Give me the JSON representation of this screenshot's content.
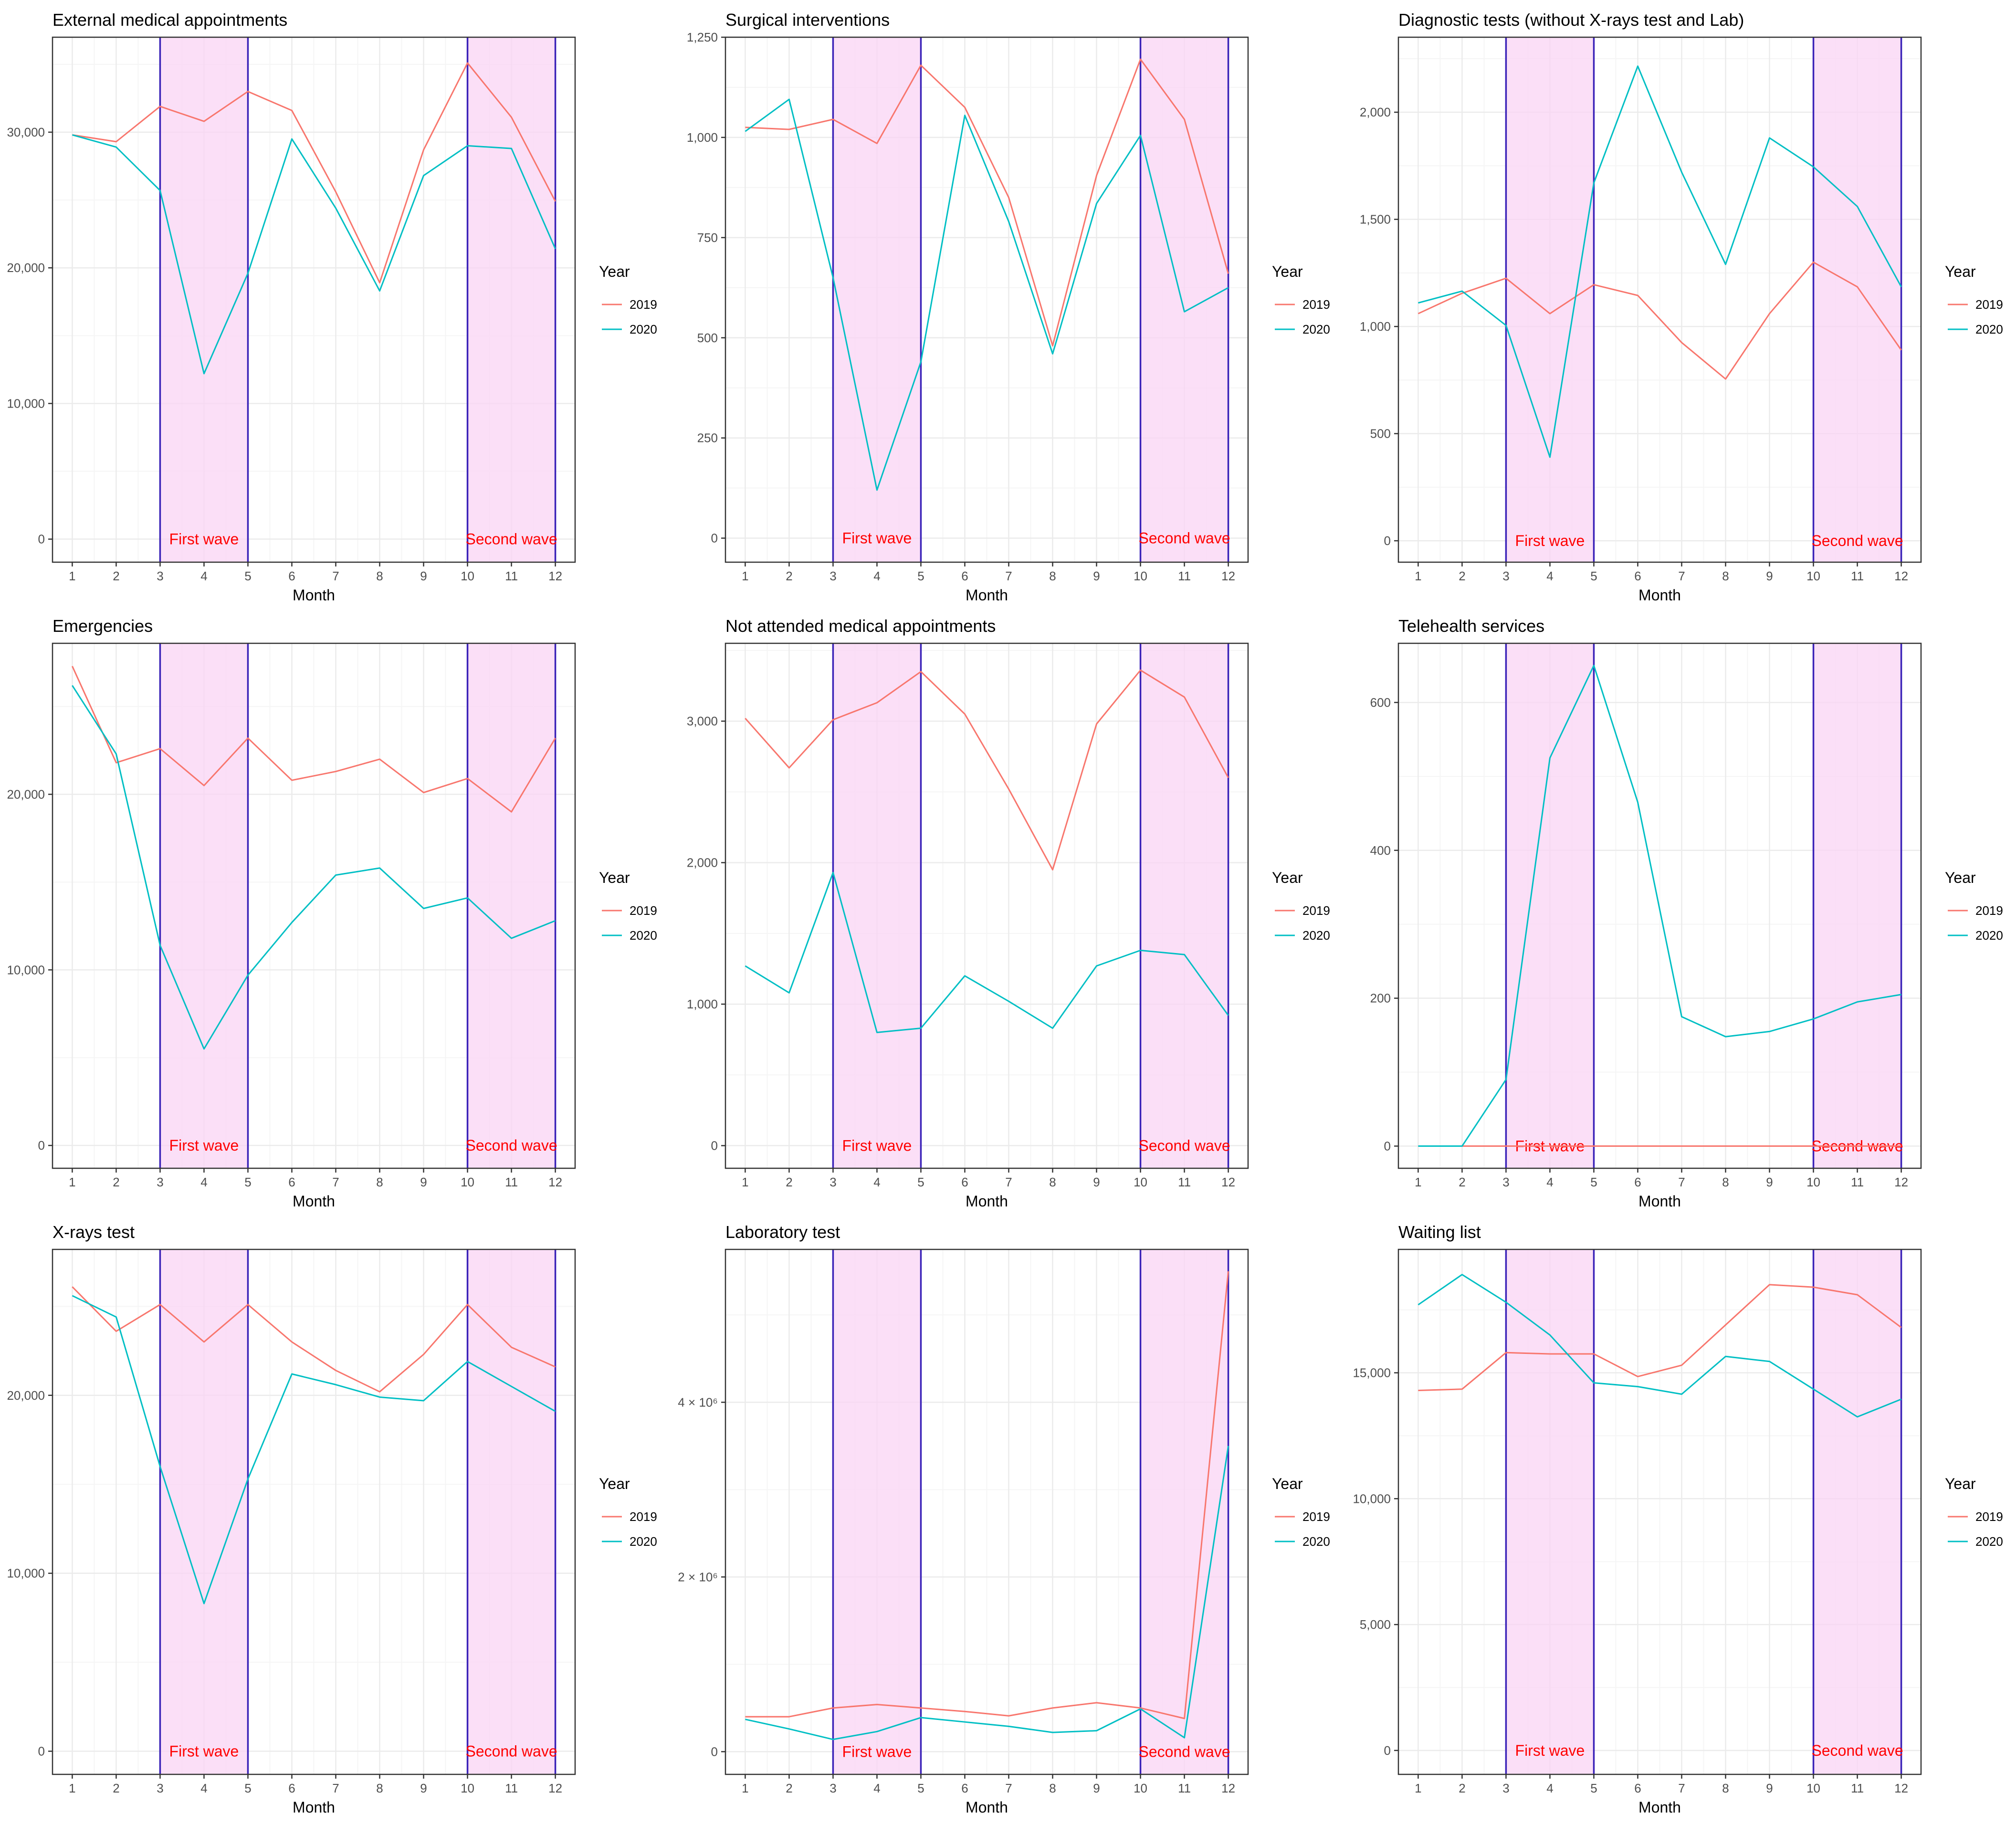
{
  "colors": {
    "series_2019": "#F8766D",
    "series_2020": "#00BFC4",
    "wave_fill": "#FAD4F4",
    "wave_line": "#3A22B8",
    "wave_label": "#FF0000",
    "grid_major": "#EBEBEB",
    "grid_minor": "#F5F5F5",
    "panel_border": "#333333"
  },
  "chart_data": [
    {
      "type": "line",
      "title": "External medical appointments",
      "xlabel": "Month",
      "x": [
        1,
        2,
        3,
        4,
        5,
        6,
        7,
        8,
        9,
        10,
        11,
        12
      ],
      "ylim": [
        -1700,
        37000
      ],
      "yticks": [
        0,
        10000,
        20000,
        30000
      ],
      "ytick_labels": [
        "0",
        "10,000",
        "20,000",
        "30,000"
      ],
      "series": [
        {
          "name": "2019",
          "values": [
            29800,
            29300,
            31900,
            30800,
            33000,
            31600,
            25600,
            18900,
            28700,
            35100,
            31100,
            24900
          ]
        },
        {
          "name": "2020",
          "values": [
            29800,
            28900,
            25700,
            12200,
            19600,
            29500,
            24400,
            18300,
            26800,
            29000,
            28800,
            21400
          ]
        }
      ],
      "waves": [
        {
          "from": 3,
          "to": 5,
          "label": "First wave"
        },
        {
          "from": 10,
          "to": 12,
          "label": "Second wave"
        }
      ],
      "legend": {
        "title": "Year",
        "position": "right"
      }
    },
    {
      "type": "line",
      "title": "Surgical interventions",
      "xlabel": "Month",
      "x": [
        1,
        2,
        3,
        4,
        5,
        6,
        7,
        8,
        9,
        10,
        11,
        12
      ],
      "ylim": [
        -60,
        1250
      ],
      "yticks": [
        0,
        250,
        500,
        750,
        1000,
        1250
      ],
      "ytick_labels": [
        "0",
        "250",
        "500",
        "750",
        "1,000",
        "1,250"
      ],
      "series": [
        {
          "name": "2019",
          "values": [
            1025,
            1020,
            1045,
            985,
            1180,
            1075,
            850,
            480,
            905,
            1195,
            1045,
            660
          ]
        },
        {
          "name": "2020",
          "values": [
            1015,
            1095,
            650,
            120,
            440,
            1055,
            790,
            460,
            835,
            1005,
            565,
            625
          ]
        }
      ],
      "waves": [
        {
          "from": 3,
          "to": 5,
          "label": "First wave"
        },
        {
          "from": 10,
          "to": 12,
          "label": "Second wave"
        }
      ],
      "legend": {
        "title": "Year",
        "position": "right"
      }
    },
    {
      "type": "line",
      "title": "Diagnostic tests (without X-rays test and Lab)",
      "xlabel": "Month",
      "x": [
        1,
        2,
        3,
        4,
        5,
        6,
        7,
        8,
        9,
        10,
        11,
        12
      ],
      "ylim": [
        -100,
        2350
      ],
      "yticks": [
        0,
        500,
        1000,
        1500,
        2000
      ],
      "ytick_labels": [
        "0",
        "500",
        "1,000",
        "1,500",
        "2,000"
      ],
      "series": [
        {
          "name": "2019",
          "values": [
            1060,
            1155,
            1225,
            1060,
            1195,
            1145,
            925,
            755,
            1060,
            1300,
            1185,
            890
          ]
        },
        {
          "name": "2020",
          "values": [
            1110,
            1165,
            1005,
            390,
            1670,
            2215,
            1720,
            1290,
            1880,
            1745,
            1560,
            1185
          ]
        }
      ],
      "waves": [
        {
          "from": 3,
          "to": 5,
          "label": "First wave"
        },
        {
          "from": 10,
          "to": 12,
          "label": "Second wave"
        }
      ],
      "legend": {
        "title": "Year",
        "position": "right"
      }
    },
    {
      "type": "line",
      "title": "Emergencies",
      "xlabel": "Month",
      "x": [
        1,
        2,
        3,
        4,
        5,
        6,
        7,
        8,
        9,
        10,
        11,
        12
      ],
      "ylim": [
        -1300,
        28600
      ],
      "yticks": [
        0,
        10000,
        20000
      ],
      "ytick_labels": [
        "0",
        "10,000",
        "20,000"
      ],
      "series": [
        {
          "name": "2019",
          "values": [
            27300,
            21800,
            22600,
            20500,
            23200,
            20800,
            21300,
            22000,
            20100,
            20900,
            19000,
            23200
          ]
        },
        {
          "name": "2020",
          "values": [
            26200,
            22300,
            11400,
            5500,
            9700,
            12700,
            15400,
            15800,
            13500,
            14100,
            11800,
            12800
          ]
        }
      ],
      "waves": [
        {
          "from": 3,
          "to": 5,
          "label": "First wave"
        },
        {
          "from": 10,
          "to": 12,
          "label": "Second wave"
        }
      ],
      "legend": {
        "title": "Year",
        "position": "right"
      }
    },
    {
      "type": "line",
      "title": "Not attended medical appointments",
      "xlabel": "Month",
      "x": [
        1,
        2,
        3,
        4,
        5,
        6,
        7,
        8,
        9,
        10,
        11,
        12
      ],
      "ylim": [
        -160,
        3550
      ],
      "yticks": [
        0,
        1000,
        2000,
        3000
      ],
      "ytick_labels": [
        "0",
        "1,000",
        "2,000",
        "3,000"
      ],
      "series": [
        {
          "name": "2019",
          "values": [
            3020,
            2670,
            3010,
            3130,
            3350,
            3050,
            2520,
            1950,
            2980,
            3360,
            3170,
            2600
          ]
        },
        {
          "name": "2020",
          "values": [
            1270,
            1080,
            1930,
            800,
            830,
            1200,
            1020,
            830,
            1270,
            1380,
            1350,
            920
          ]
        }
      ],
      "waves": [
        {
          "from": 3,
          "to": 5,
          "label": "First wave"
        },
        {
          "from": 10,
          "to": 12,
          "label": "Second wave"
        }
      ],
      "legend": {
        "title": "Year",
        "position": "right"
      }
    },
    {
      "type": "line",
      "title": "Telehealth services",
      "xlabel": "Month",
      "x": [
        1,
        2,
        3,
        4,
        5,
        6,
        7,
        8,
        9,
        10,
        11,
        12
      ],
      "ylim": [
        -30,
        680
      ],
      "yticks": [
        0,
        200,
        400,
        600
      ],
      "ytick_labels": [
        "0",
        "200",
        "400",
        "600"
      ],
      "series": [
        {
          "name": "2019",
          "values": [
            0,
            0,
            0,
            0,
            0,
            0,
            0,
            0,
            0,
            0,
            0,
            0
          ]
        },
        {
          "name": "2020",
          "values": [
            0,
            0,
            90,
            525,
            650,
            465,
            175,
            148,
            155,
            172,
            195,
            205
          ]
        }
      ],
      "waves": [
        {
          "from": 3,
          "to": 5,
          "label": "First wave"
        },
        {
          "from": 10,
          "to": 12,
          "label": "Second wave"
        }
      ],
      "legend": {
        "title": "Year",
        "position": "right"
      }
    },
    {
      "type": "line",
      "title": "X-rays test",
      "xlabel": "Month",
      "x": [
        1,
        2,
        3,
        4,
        5,
        6,
        7,
        8,
        9,
        10,
        11,
        12
      ],
      "ylim": [
        -1300,
        28200
      ],
      "yticks": [
        0,
        10000,
        20000
      ],
      "ytick_labels": [
        "0",
        "10,000",
        "20,000"
      ],
      "series": [
        {
          "name": "2019",
          "values": [
            26100,
            23600,
            25100,
            23000,
            25100,
            23000,
            21400,
            20200,
            22300,
            25100,
            22700,
            21600
          ]
        },
        {
          "name": "2020",
          "values": [
            25600,
            24400,
            16000,
            8300,
            15300,
            21200,
            20600,
            19900,
            19700,
            21900,
            20500,
            19100
          ]
        }
      ],
      "waves": [
        {
          "from": 3,
          "to": 5,
          "label": "First wave"
        },
        {
          "from": 10,
          "to": 12,
          "label": "Second wave"
        }
      ],
      "legend": {
        "title": "Year",
        "position": "right"
      }
    },
    {
      "type": "line",
      "title": "Laboratory test",
      "xlabel": "Month",
      "x": [
        1,
        2,
        3,
        4,
        5,
        6,
        7,
        8,
        9,
        10,
        11,
        12
      ],
      "ylim": [
        -260000,
        5750000
      ],
      "yticks": [
        0,
        2000000,
        4000000
      ],
      "ytick_labels": [
        "0",
        "2 × 10⁶",
        "4 × 10⁶"
      ],
      "series": [
        {
          "name": "2019",
          "values": [
            400000,
            400000,
            500000,
            540000,
            500000,
            460000,
            410000,
            500000,
            560000,
            500000,
            380000,
            5500000
          ]
        },
        {
          "name": "2020",
          "values": [
            370000,
            260000,
            140000,
            230000,
            390000,
            340000,
            290000,
            220000,
            240000,
            490000,
            160000,
            3500000
          ]
        }
      ],
      "waves": [
        {
          "from": 3,
          "to": 5,
          "label": "First wave"
        },
        {
          "from": 10,
          "to": 12,
          "label": "Second wave"
        }
      ],
      "legend": {
        "title": "Year",
        "position": "right"
      }
    },
    {
      "type": "line",
      "title": "Waiting list",
      "xlabel": "Month",
      "x": [
        1,
        2,
        3,
        4,
        5,
        6,
        7,
        8,
        9,
        10,
        11,
        12
      ],
      "ylim": [
        -950,
        19900
      ],
      "yticks": [
        0,
        5000,
        10000,
        15000
      ],
      "ytick_labels": [
        "0",
        "5,000",
        "10,000",
        "15,000"
      ],
      "series": [
        {
          "name": "2019",
          "values": [
            14300,
            14350,
            15800,
            15750,
            15750,
            14850,
            15300,
            16900,
            18500,
            18400,
            18100,
            16800
          ]
        },
        {
          "name": "2020",
          "values": [
            17700,
            18900,
            17800,
            16500,
            14600,
            14450,
            14150,
            15650,
            15450,
            14350,
            13250,
            13950
          ]
        }
      ],
      "waves": [
        {
          "from": 3,
          "to": 5,
          "label": "First wave"
        },
        {
          "from": 10,
          "to": 12,
          "label": "Second wave"
        }
      ],
      "legend": {
        "title": "Year",
        "position": "right"
      }
    }
  ]
}
